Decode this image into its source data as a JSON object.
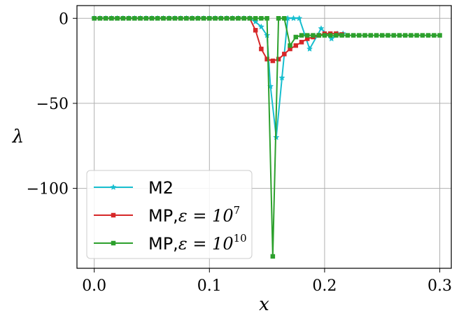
{
  "chart_data": {
    "type": "line",
    "title": "",
    "xlabel": "x",
    "ylabel": "λ",
    "xlim": [
      -0.015,
      0.31
    ],
    "ylim": [
      -147,
      7.5
    ],
    "xticks": [
      0.0,
      0.1,
      0.2,
      0.3
    ],
    "xtick_labels": [
      "0.0",
      "0.1",
      "0.2",
      "0.3"
    ],
    "yticks": [
      0,
      -50,
      -100
    ],
    "ytick_labels": [
      "0",
      "−50",
      "−100"
    ],
    "grid": true,
    "legend_position": "lower-left",
    "series": [
      {
        "name": "M2",
        "legend_text": "M2",
        "color": "#17becf",
        "marker": "star",
        "points": [
          [
            0.0,
            0
          ],
          [
            0.005,
            0
          ],
          [
            0.01,
            0
          ],
          [
            0.015,
            0
          ],
          [
            0.02,
            0
          ],
          [
            0.025,
            0
          ],
          [
            0.03,
            0
          ],
          [
            0.035,
            0
          ],
          [
            0.04,
            0
          ],
          [
            0.045,
            0
          ],
          [
            0.05,
            0
          ],
          [
            0.055,
            0
          ],
          [
            0.06,
            0
          ],
          [
            0.065,
            0
          ],
          [
            0.07,
            0
          ],
          [
            0.075,
            0
          ],
          [
            0.08,
            0
          ],
          [
            0.085,
            0
          ],
          [
            0.09,
            0
          ],
          [
            0.095,
            0
          ],
          [
            0.1,
            0
          ],
          [
            0.105,
            0
          ],
          [
            0.11,
            0
          ],
          [
            0.115,
            0
          ],
          [
            0.12,
            0
          ],
          [
            0.125,
            0
          ],
          [
            0.13,
            0
          ],
          [
            0.135,
            0
          ],
          [
            0.14,
            -2
          ],
          [
            0.145,
            -5
          ],
          [
            0.15,
            -10
          ],
          [
            0.153,
            -40
          ],
          [
            0.158,
            -70
          ],
          [
            0.163,
            -35
          ],
          [
            0.168,
            0
          ],
          [
            0.173,
            0
          ],
          [
            0.178,
            0
          ],
          [
            0.187,
            -18
          ],
          [
            0.197,
            -6
          ],
          [
            0.206,
            -12
          ],
          [
            0.211,
            -9
          ],
          [
            0.216,
            -9
          ]
        ]
      },
      {
        "name": "MP, ε = 10^7",
        "legend_text": "MP,",
        "legend_math": "ε = 10",
        "legend_sup": "7",
        "color": "#d62728",
        "marker": "square",
        "points": [
          [
            0.0,
            0
          ],
          [
            0.005,
            0
          ],
          [
            0.01,
            0
          ],
          [
            0.015,
            0
          ],
          [
            0.02,
            0
          ],
          [
            0.025,
            0
          ],
          [
            0.03,
            0
          ],
          [
            0.035,
            0
          ],
          [
            0.04,
            0
          ],
          [
            0.045,
            0
          ],
          [
            0.05,
            0
          ],
          [
            0.055,
            0
          ],
          [
            0.06,
            0
          ],
          [
            0.065,
            0
          ],
          [
            0.07,
            0
          ],
          [
            0.075,
            0
          ],
          [
            0.08,
            0
          ],
          [
            0.085,
            0
          ],
          [
            0.09,
            0
          ],
          [
            0.095,
            0
          ],
          [
            0.1,
            0
          ],
          [
            0.105,
            0
          ],
          [
            0.11,
            0
          ],
          [
            0.115,
            0
          ],
          [
            0.12,
            0
          ],
          [
            0.125,
            0
          ],
          [
            0.13,
            0
          ],
          [
            0.135,
            0
          ],
          [
            0.14,
            -7
          ],
          [
            0.145,
            -18
          ],
          [
            0.15,
            -24
          ],
          [
            0.155,
            -25
          ],
          [
            0.16,
            -24
          ],
          [
            0.165,
            -21
          ],
          [
            0.17,
            -18
          ],
          [
            0.175,
            -16
          ],
          [
            0.18,
            -14
          ],
          [
            0.185,
            -12
          ],
          [
            0.19,
            -11
          ],
          [
            0.195,
            -10
          ],
          [
            0.2,
            -9
          ],
          [
            0.205,
            -9
          ],
          [
            0.21,
            -9
          ],
          [
            0.215,
            -9.5
          ]
        ]
      },
      {
        "name": "MP, ε = 10^10",
        "legend_text": "MP,",
        "legend_math": "ε = 10",
        "legend_sup": "10",
        "color": "#2ca02c",
        "marker": "square",
        "points": [
          [
            0.0,
            0
          ],
          [
            0.005,
            0
          ],
          [
            0.01,
            0
          ],
          [
            0.015,
            0
          ],
          [
            0.02,
            0
          ],
          [
            0.025,
            0
          ],
          [
            0.03,
            0
          ],
          [
            0.035,
            0
          ],
          [
            0.04,
            0
          ],
          [
            0.045,
            0
          ],
          [
            0.05,
            0
          ],
          [
            0.055,
            0
          ],
          [
            0.06,
            0
          ],
          [
            0.065,
            0
          ],
          [
            0.07,
            0
          ],
          [
            0.075,
            0
          ],
          [
            0.08,
            0
          ],
          [
            0.085,
            0
          ],
          [
            0.09,
            0
          ],
          [
            0.095,
            0
          ],
          [
            0.1,
            0
          ],
          [
            0.105,
            0
          ],
          [
            0.11,
            0
          ],
          [
            0.115,
            0
          ],
          [
            0.12,
            0
          ],
          [
            0.125,
            0
          ],
          [
            0.13,
            0
          ],
          [
            0.135,
            0
          ],
          [
            0.14,
            0
          ],
          [
            0.145,
            0
          ],
          [
            0.15,
            0
          ],
          [
            0.155,
            -140
          ],
          [
            0.16,
            0
          ],
          [
            0.165,
            0
          ],
          [
            0.17,
            -16
          ],
          [
            0.175,
            -11
          ],
          [
            0.18,
            -10
          ],
          [
            0.185,
            -10
          ],
          [
            0.19,
            -10
          ],
          [
            0.195,
            -10
          ],
          [
            0.2,
            -10
          ],
          [
            0.205,
            -10
          ],
          [
            0.21,
            -10
          ],
          [
            0.215,
            -10
          ],
          [
            0.22,
            -10
          ],
          [
            0.225,
            -10
          ],
          [
            0.23,
            -10
          ],
          [
            0.235,
            -10
          ],
          [
            0.24,
            -10
          ],
          [
            0.245,
            -10
          ],
          [
            0.25,
            -10
          ],
          [
            0.255,
            -10
          ],
          [
            0.26,
            -10
          ],
          [
            0.265,
            -10
          ],
          [
            0.27,
            -10
          ],
          [
            0.275,
            -10
          ],
          [
            0.28,
            -10
          ],
          [
            0.285,
            -10
          ],
          [
            0.29,
            -10
          ],
          [
            0.295,
            -10
          ],
          [
            0.3,
            -10
          ]
        ]
      }
    ]
  }
}
